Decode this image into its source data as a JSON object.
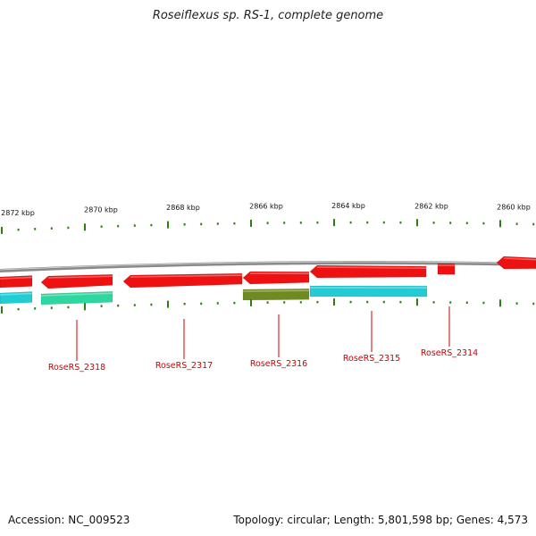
{
  "header": {
    "title": "Roseiflexus sp. RS-1, complete genome"
  },
  "footer": {
    "accession": "Accession: NC_009523",
    "summary": "Topology: circular; Length: 5,801,598 bp; Genes: 4,573"
  },
  "colors": {
    "backbone": "#8a8a8a",
    "cds": "#ee1111",
    "tick": "#2e7d12",
    "label": "#cc0000",
    "feature_cyan": "#22ccd4",
    "feature_green": "#2ed6a0",
    "feature_olive": "#6f8a22"
  },
  "scale": {
    "labels": [
      "2872 kbp",
      "2870 kbp",
      "2868 kbp",
      "2866 kbp",
      "2864 kbp",
      "2862 kbp",
      "2860 kbp"
    ]
  },
  "genes": [
    {
      "id": "RoseRS_2318",
      "label": "RoseRS_2318"
    },
    {
      "id": "RoseRS_2317",
      "label": "RoseRS_2317"
    },
    {
      "id": "RoseRS_2316",
      "label": "RoseRS_2316"
    },
    {
      "id": "RoseRS_2315",
      "label": "RoseRS_2315"
    },
    {
      "id": "RoseRS_2314",
      "label": "RoseRS_2314"
    }
  ]
}
